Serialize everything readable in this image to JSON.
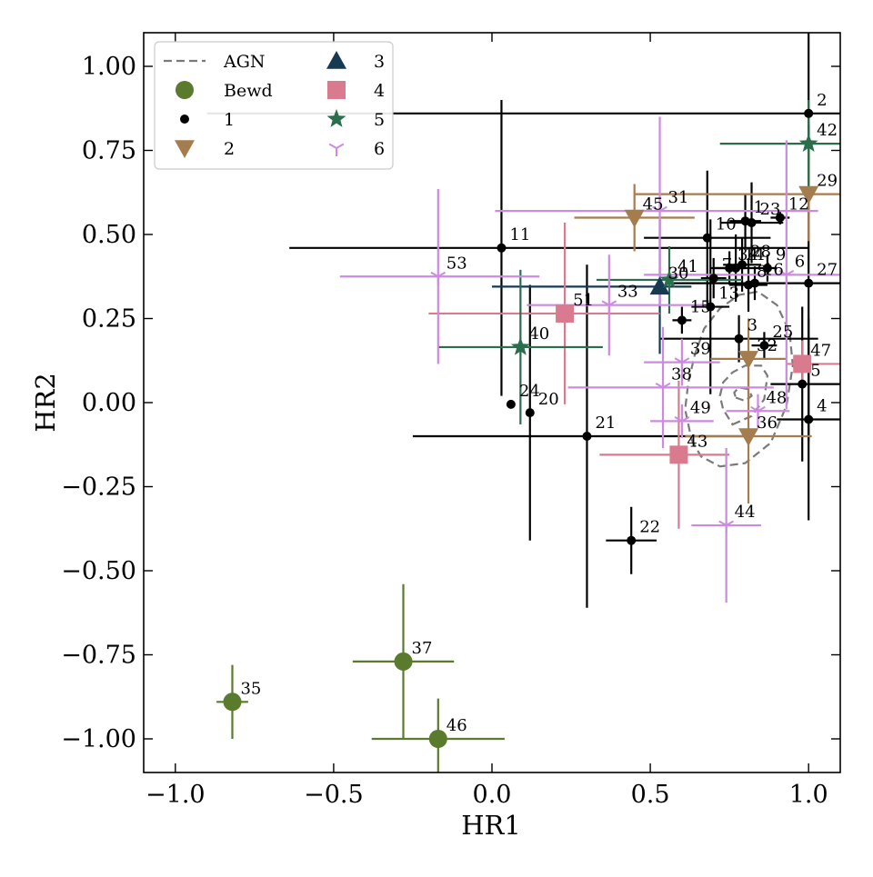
{
  "chart_data": {
    "type": "scatter",
    "title": "",
    "xlabel": "HR1",
    "ylabel": "HR2",
    "xlim": [
      -1.1,
      1.1
    ],
    "ylim": [
      -1.1,
      1.1
    ],
    "x_ticks": [
      -1.0,
      -0.5,
      0.0,
      0.5,
      1.0
    ],
    "x_tick_labels": [
      "−1.0",
      "−0.5",
      "0.0",
      "0.5",
      "1.0"
    ],
    "y_ticks": [
      -1.0,
      -0.75,
      -0.5,
      -0.25,
      0.0,
      0.25,
      0.5,
      0.75,
      1.0
    ],
    "y_tick_labels": [
      "−1.00",
      "−0.75",
      "−0.50",
      "−0.25",
      "0.00",
      "0.25",
      "0.50",
      "0.75",
      "1.00"
    ],
    "grid": false,
    "legend_placement": "top-left",
    "legend": [
      {
        "label": "AGN",
        "marker": "dashed-line",
        "color": "#7a7a7a"
      },
      {
        "label": "Bewd",
        "marker": "circle-large",
        "color": "#5a7a2e"
      },
      {
        "label": "1",
        "marker": "circle-small",
        "color": "#000000"
      },
      {
        "label": "2",
        "marker": "triangle-down",
        "color": "#a57c4e"
      },
      {
        "label": "3",
        "marker": "triangle-up",
        "color": "#163a52"
      },
      {
        "label": "4",
        "marker": "square",
        "color": "#d97a8e"
      },
      {
        "label": "5",
        "marker": "star",
        "color": "#2a6e4e"
      },
      {
        "label": "6",
        "marker": "tri-down",
        "color": "#cc8ae0"
      }
    ],
    "series": [
      {
        "name": "Bewd",
        "marker": "circle-large",
        "color": "#5a7a2e",
        "points": [
          {
            "id": "35",
            "x": -0.82,
            "y": -0.89,
            "xerr": [
              0.05,
              0.05
            ],
            "yerr": [
              0.11,
              0.11
            ]
          },
          {
            "id": "37",
            "x": -0.28,
            "y": -0.77,
            "xerr": [
              0.16,
              0.16
            ],
            "yerr": [
              0.23,
              0.23
            ]
          },
          {
            "id": "46",
            "x": -0.17,
            "y": -1.0,
            "xerr": [
              0.21,
              0.21
            ],
            "yerr": [
              0.12,
              0.12
            ]
          }
        ]
      },
      {
        "name": "1",
        "marker": "circle-small",
        "color": "#000000",
        "points": [
          {
            "id": "2",
            "x": 1.0,
            "y": 0.86,
            "xerr": [
              1.9,
              0.1
            ],
            "yerr": [
              0.25,
              0.25
            ]
          },
          {
            "id": "11",
            "x": 0.03,
            "y": 0.46,
            "xerr": [
              0.67,
              0.97
            ],
            "yerr": [
              0.44,
              0.44
            ]
          },
          {
            "id": "24",
            "x": 0.06,
            "y": -0.005,
            "xerr": [
              0.01,
              0.01
            ],
            "yerr": [
              0.01,
              0.01
            ]
          },
          {
            "id": "20",
            "x": 0.12,
            "y": -0.03,
            "xerr": [
              0.01,
              0.01
            ],
            "yerr": [
              0.38,
              0.38
            ]
          },
          {
            "id": "21",
            "x": 0.3,
            "y": -0.1,
            "xerr": [
              0.55,
              0.5
            ],
            "yerr": [
              0.51,
              0.51
            ]
          },
          {
            "id": "22",
            "x": 0.44,
            "y": -0.41,
            "xerr": [
              0.08,
              0.08
            ],
            "yerr": [
              0.1,
              0.1
            ]
          },
          {
            "id": "10",
            "x": 0.68,
            "y": 0.49,
            "xerr": [
              0.2,
              0.2
            ],
            "yerr": [
              0.2,
              0.2
            ]
          },
          {
            "id": "1",
            "x": 0.8,
            "y": 0.54,
            "xerr": [
              0.05,
              0.05
            ],
            "yerr": [
              0.08,
              0.08
            ]
          },
          {
            "id": "23",
            "x": 0.82,
            "y": 0.535,
            "xerr": [
              0.1,
              0.1
            ],
            "yerr": [
              0.12,
              0.12
            ]
          },
          {
            "id": "12",
            "x": 0.91,
            "y": 0.55,
            "xerr": [
              0.03,
              0.03
            ],
            "yerr": [
              0.02,
              0.02
            ]
          },
          {
            "id": "34",
            "x": 0.75,
            "y": 0.4,
            "xerr": [
              0.05,
              0.05
            ],
            "yerr": [
              0.05,
              0.05
            ]
          },
          {
            "id": "14",
            "x": 0.77,
            "y": 0.4,
            "xerr": [
              0.08,
              0.08
            ],
            "yerr": [
              0.1,
              0.1
            ]
          },
          {
            "id": "28",
            "x": 0.79,
            "y": 0.41,
            "xerr": [
              0.06,
              0.06
            ],
            "yerr": [
              0.08,
              0.08
            ]
          },
          {
            "id": "7",
            "x": 0.7,
            "y": 0.37,
            "xerr": [
              0.04,
              0.04
            ],
            "yerr": [
              0.06,
              0.06
            ]
          },
          {
            "id": "8",
            "x": 0.81,
            "y": 0.35,
            "xerr": [
              0.06,
              0.06
            ],
            "yerr": [
              0.08,
              0.08
            ]
          },
          {
            "id": "16",
            "x": 0.83,
            "y": 0.355,
            "xerr": [
              0.04,
              0.04
            ],
            "yerr": [
              0.05,
              0.05
            ]
          },
          {
            "id": "9",
            "x": 0.87,
            "y": 0.4,
            "xerr": [
              0.03,
              0.03
            ],
            "yerr": [
              0.04,
              0.04
            ]
          },
          {
            "id": "27",
            "x": 1.0,
            "y": 0.355,
            "xerr": [
              0.45,
              0.1
            ],
            "yerr": [
              0.47,
              0.47
            ]
          },
          {
            "id": "13",
            "x": 0.69,
            "y": 0.285,
            "xerr": [
              0.06,
              0.06
            ],
            "yerr": [
              0.26,
              0.26
            ]
          },
          {
            "id": "15",
            "x": 0.6,
            "y": 0.245,
            "xerr": [
              0.03,
              0.03
            ],
            "yerr": [
              0.04,
              0.04
            ]
          },
          {
            "id": "3",
            "x": 0.78,
            "y": 0.19,
            "xerr": [
              0.25,
              0.25
            ],
            "yerr": [
              0.07,
              0.07
            ]
          },
          {
            "id": "25",
            "x": 0.86,
            "y": 0.17,
            "xerr": [
              0.04,
              0.04
            ],
            "yerr": [
              0.04,
              0.04
            ]
          },
          {
            "id": "5",
            "x": 0.98,
            "y": 0.055,
            "xerr": [
              0.1,
              0.12
            ],
            "yerr": [
              0.23,
              0.23
            ]
          },
          {
            "id": "4",
            "x": 1.0,
            "y": -0.05,
            "xerr": [
              0.1,
              0.1
            ],
            "yerr": [
              0.3,
              0.3
            ]
          }
        ]
      },
      {
        "name": "2",
        "marker": "triangle-down",
        "color": "#a57c4e",
        "points": [
          {
            "id": "45",
            "x": 0.45,
            "y": 0.55,
            "xerr": [
              0.19,
              0.19
            ],
            "yerr": [
              0.1,
              0.1
            ]
          },
          {
            "id": "29",
            "x": 1.0,
            "y": 0.62,
            "xerr": [
              0.55,
              0.1
            ],
            "yerr": [
              0.14,
              0.14
            ]
          },
          {
            "id": "32",
            "x": 0.81,
            "y": 0.13,
            "xerr": [
              0.12,
              0.12
            ],
            "yerr": [
              0.12,
              0.12
            ]
          },
          {
            "id": "36",
            "x": 0.81,
            "y": -0.1,
            "xerr": [
              0.2,
              0.2
            ],
            "yerr": [
              0.2,
              0.2
            ]
          }
        ]
      },
      {
        "name": "3",
        "marker": "triangle-up",
        "color": "#163a52",
        "points": [
          {
            "id": "30",
            "x": 0.53,
            "y": 0.345,
            "xerr": [
              0.53,
              0.1
            ],
            "yerr": [
              0.2,
              0.2
            ]
          }
        ]
      },
      {
        "name": "4",
        "marker": "square",
        "color": "#d97a8e",
        "points": [
          {
            "id": "51",
            "x": 0.23,
            "y": 0.265,
            "xerr": [
              0.43,
              0.3
            ],
            "yerr": [
              0.27,
              0.27
            ]
          },
          {
            "id": "43",
            "x": 0.59,
            "y": -0.155,
            "xerr": [
              0.25,
              0.16
            ],
            "yerr": [
              0.22,
              0.22
            ]
          },
          {
            "id": "47",
            "x": 0.98,
            "y": 0.115,
            "xerr": [
              0.05,
              0.12
            ],
            "yerr": [
              0.07,
              0.07
            ]
          }
        ]
      },
      {
        "name": "5",
        "marker": "star",
        "color": "#2a6e4e",
        "points": [
          {
            "id": "42",
            "x": 1.0,
            "y": 0.77,
            "xerr": [
              0.28,
              0.1
            ],
            "yerr": [
              0.13,
              0.13
            ]
          },
          {
            "id": "41",
            "x": 0.56,
            "y": 0.365,
            "xerr": [
              0.23,
              0.23
            ],
            "yerr": [
              0.1,
              0.1
            ]
          },
          {
            "id": "40",
            "x": 0.09,
            "y": 0.165,
            "xerr": [
              0.26,
              0.26
            ],
            "yerr": [
              0.23,
              0.23
            ]
          }
        ]
      },
      {
        "name": "6",
        "marker": "tri-down",
        "color": "#cc8ae0",
        "points": [
          {
            "id": "31",
            "x": 0.53,
            "y": 0.57,
            "xerr": [
              0.52,
              0.5
            ],
            "yerr": [
              0.28,
              0.28
            ]
          },
          {
            "id": "53",
            "x": -0.17,
            "y": 0.375,
            "xerr": [
              0.31,
              0.32
            ],
            "yerr": [
              0.26,
              0.26
            ]
          },
          {
            "id": "33",
            "x": 0.37,
            "y": 0.29,
            "xerr": [
              0.26,
              0.3
            ],
            "yerr": [
              0.15,
              0.15
            ]
          },
          {
            "id": "39",
            "x": 0.6,
            "y": 0.12,
            "xerr": [
              0.12,
              0.12
            ],
            "yerr": [
              0.07,
              0.07
            ]
          },
          {
            "id": "38",
            "x": 0.54,
            "y": 0.045,
            "xerr": [
              0.3,
              0.35
            ],
            "yerr": [
              0.18,
              0.18
            ]
          },
          {
            "id": "48",
            "x": 0.84,
            "y": -0.025,
            "xerr": [
              0.1,
              0.1
            ],
            "yerr": [
              0.05,
              0.05
            ]
          },
          {
            "id": "49",
            "x": 0.6,
            "y": -0.055,
            "xerr": [
              0.1,
              0.1
            ],
            "yerr": [
              0.05,
              0.05
            ]
          },
          {
            "id": "44",
            "x": 0.74,
            "y": -0.365,
            "xerr": [
              0.11,
              0.11
            ],
            "yerr": [
              0.23,
              0.23
            ]
          },
          {
            "id": "6",
            "x": 0.93,
            "y": 0.38,
            "xerr": [
              0.45,
              0.17
            ],
            "yerr": [
              0.4,
              0.4
            ]
          }
        ]
      }
    ],
    "agn_contour": {
      "label": "AGN",
      "color": "#7a7a7a",
      "outer": [
        [
          0.63,
          -0.11
        ],
        [
          0.66,
          -0.16
        ],
        [
          0.72,
          -0.19
        ],
        [
          0.8,
          -0.18
        ],
        [
          0.88,
          -0.12
        ],
        [
          0.93,
          -0.01
        ],
        [
          0.95,
          0.11
        ],
        [
          0.94,
          0.21
        ],
        [
          0.9,
          0.29
        ],
        [
          0.84,
          0.33
        ],
        [
          0.78,
          0.32
        ],
        [
          0.72,
          0.28
        ],
        [
          0.67,
          0.22
        ],
        [
          0.64,
          0.14
        ],
        [
          0.62,
          0.06
        ],
        [
          0.61,
          -0.02
        ]
      ],
      "inner": [
        [
          0.76,
          -0.065
        ],
        [
          0.82,
          -0.04
        ],
        [
          0.86,
          0.01
        ],
        [
          0.87,
          0.08
        ],
        [
          0.85,
          0.11
        ],
        [
          0.8,
          0.11
        ],
        [
          0.76,
          0.09
        ],
        [
          0.73,
          0.06
        ],
        [
          0.72,
          0.02
        ],
        [
          0.73,
          -0.02
        ]
      ],
      "core": [
        [
          0.77,
          0.015
        ],
        [
          0.8,
          0.005
        ],
        [
          0.82,
          0.02
        ],
        [
          0.81,
          0.04
        ],
        [
          0.78,
          0.045
        ],
        [
          0.765,
          0.03
        ]
      ]
    }
  }
}
